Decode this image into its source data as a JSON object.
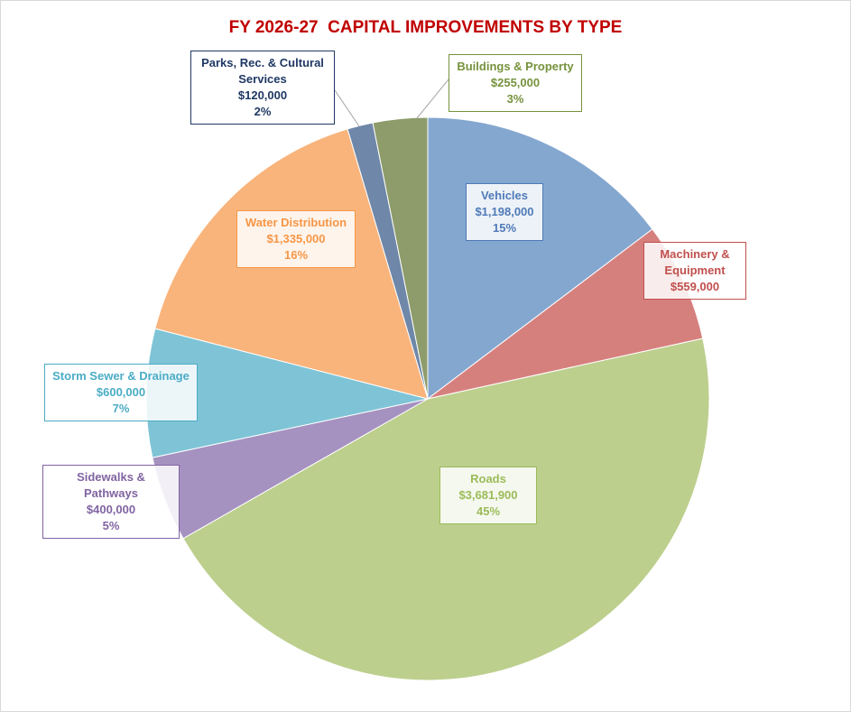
{
  "chart_data": {
    "type": "pie",
    "title": "FY 2026-27  CAPITAL IMPROVEMENTS BY TYPE",
    "categories": [
      "Vehicles",
      "Machinery & Equipment",
      "Roads",
      "Sidewalks & Pathways",
      "Storm Sewer & Drainage",
      "Water Distribution",
      "Parks, Rec. & Cultural Services",
      "Buildings & Property"
    ],
    "values": [
      1198000,
      559000,
      3681900,
      400000,
      600000,
      1335000,
      120000,
      255000
    ],
    "value_labels": [
      "$1,198,000",
      "$559,000",
      "$3,681,900",
      "$400,000",
      "$600,000",
      "$1,335,000",
      "$120,000",
      "$255,000"
    ],
    "percents": [
      15,
      null,
      45,
      5,
      7,
      16,
      2,
      3
    ],
    "percent_labels": [
      "15%",
      null,
      "45%",
      "5%",
      "7%",
      "16%",
      "2%",
      "3%"
    ],
    "colors": [
      "#84a7d0",
      "#d6807e",
      "#bccf8d",
      "#a592c0",
      "#7ec4d6",
      "#f9b47c",
      "#6f87a8",
      "#8d9c6a"
    ],
    "label_colors": [
      "#4f7ab8",
      "#c0504d",
      "#9bbb59",
      "#8064a2",
      "#4bacc6",
      "#f79646",
      "#1f3864",
      "#76923c"
    ]
  }
}
